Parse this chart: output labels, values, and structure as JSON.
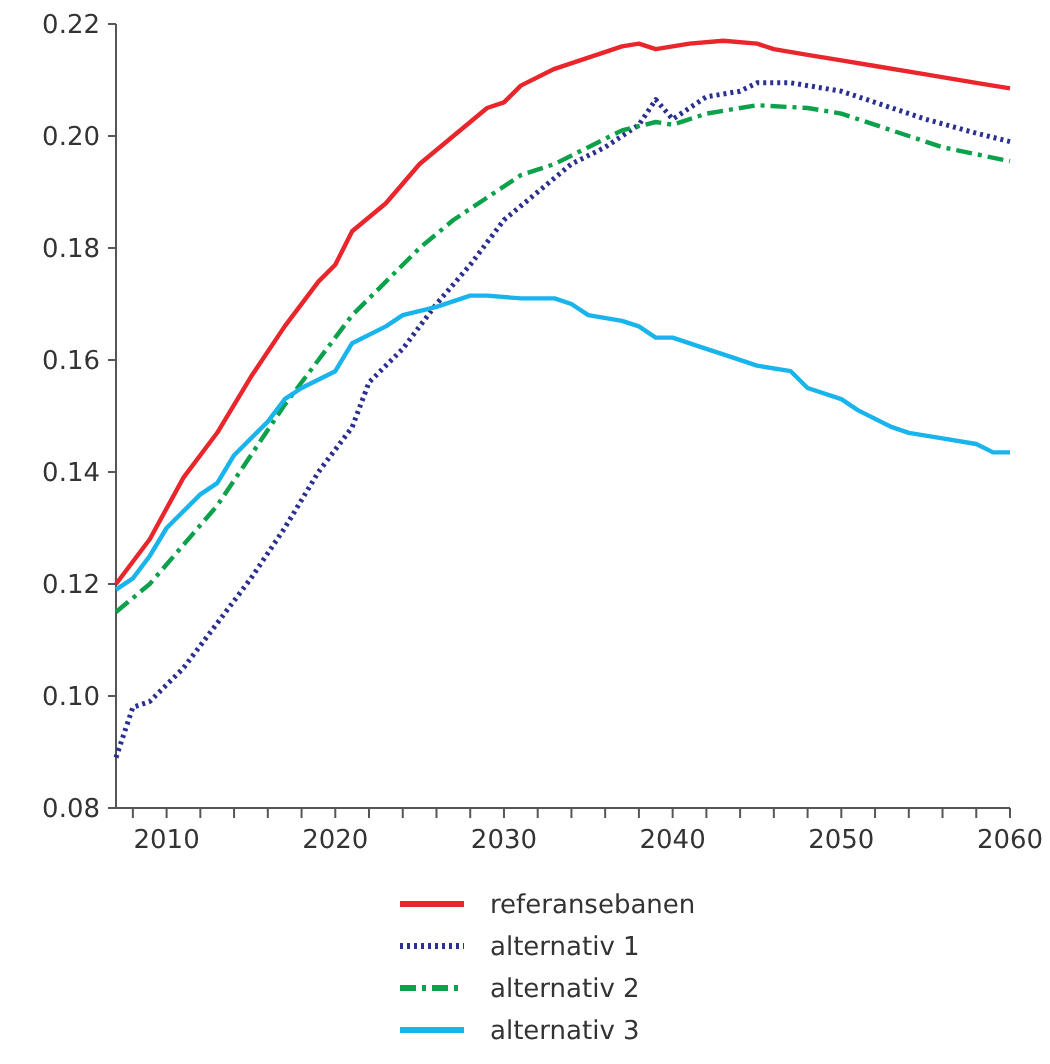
{
  "chart_data": {
    "type": "line",
    "xlim": [
      2007,
      2060
    ],
    "ylim": [
      0.08,
      0.22
    ],
    "xticks": [
      {
        "value": 2008,
        "label": null
      },
      2010,
      {
        "value": 2012,
        "label": null
      },
      {
        "value": 2014,
        "label": null
      },
      {
        "value": 2016,
        "label": null
      },
      {
        "value": 2018,
        "label": null
      },
      2020,
      {
        "value": 2022,
        "label": null
      },
      {
        "value": 2024,
        "label": null
      },
      {
        "value": 2026,
        "label": null
      },
      {
        "value": 2028,
        "label": null
      },
      2030,
      {
        "value": 2032,
        "label": null
      },
      {
        "value": 2034,
        "label": null
      },
      {
        "value": 2036,
        "label": null
      },
      {
        "value": 2038,
        "label": null
      },
      2040,
      {
        "value": 2042,
        "label": null
      },
      {
        "value": 2044,
        "label": null
      },
      {
        "value": 2046,
        "label": null
      },
      {
        "value": 2048,
        "label": null
      },
      2050,
      {
        "value": 2052,
        "label": null
      },
      {
        "value": 2054,
        "label": null
      },
      {
        "value": 2056,
        "label": null
      },
      {
        "value": 2058,
        "label": null
      },
      2060
    ],
    "yticks": [
      {
        "value": 0.08,
        "label": "0.08"
      },
      {
        "value": 0.1,
        "label": "0.10"
      },
      {
        "value": 0.12,
        "label": "0.12"
      },
      {
        "value": 0.14,
        "label": "0.14"
      },
      {
        "value": 0.16,
        "label": "0.16"
      },
      {
        "value": 0.18,
        "label": "0.18"
      },
      {
        "value": 0.2,
        "label": "0.20"
      },
      {
        "value": 0.22,
        "label": "0.22"
      }
    ],
    "legend": "bottom",
    "grid": false,
    "series": [
      {
        "name": "referansebanen",
        "color": "#e8262c",
        "line_style": "solid",
        "x": [
          2007,
          2009,
          2011,
          2013,
          2015,
          2017,
          2019,
          2020,
          2021,
          2023,
          2025,
          2027,
          2029,
          2030,
          2031,
          2033,
          2035,
          2037,
          2038,
          2039,
          2041,
          2043,
          2045,
          2046,
          2048,
          2050,
          2052,
          2055,
          2058,
          2060
        ],
        "values": [
          0.12,
          0.128,
          0.139,
          0.147,
          0.157,
          0.166,
          0.174,
          0.177,
          0.183,
          0.188,
          0.195,
          0.2,
          0.205,
          0.206,
          0.209,
          0.212,
          0.214,
          0.216,
          0.2165,
          0.2155,
          0.2165,
          0.217,
          0.2165,
          0.2155,
          0.2145,
          0.2135,
          0.2125,
          0.211,
          0.2095,
          0.2085
        ]
      },
      {
        "name": "alternativ 1",
        "color": "#2b2f8f",
        "line_style": "dotted",
        "x": [
          2007,
          2008,
          2009,
          2011,
          2013,
          2015,
          2017,
          2019,
          2021,
          2022,
          2024,
          2026,
          2028,
          2030,
          2032,
          2034,
          2036,
          2038,
          2039,
          2040,
          2042,
          2044,
          2045,
          2047,
          2050,
          2052,
          2055,
          2058,
          2060
        ],
        "values": [
          0.089,
          0.098,
          0.099,
          0.105,
          0.113,
          0.121,
          0.13,
          0.14,
          0.148,
          0.156,
          0.162,
          0.17,
          0.177,
          0.185,
          0.19,
          0.195,
          0.198,
          0.202,
          0.2065,
          0.203,
          0.207,
          0.208,
          0.2095,
          0.2095,
          0.208,
          0.206,
          0.203,
          0.2005,
          0.199
        ]
      },
      {
        "name": "alternativ 2",
        "color": "#0ca14a",
        "line_style": "dashdot",
        "x": [
          2007,
          2009,
          2011,
          2013,
          2015,
          2017,
          2019,
          2021,
          2023,
          2025,
          2027,
          2029,
          2031,
          2033,
          2035,
          2037,
          2039,
          2040,
          2042,
          2045,
          2048,
          2050,
          2053,
          2056,
          2060
        ],
        "values": [
          0.115,
          0.12,
          0.127,
          0.134,
          0.143,
          0.152,
          0.16,
          0.168,
          0.174,
          0.18,
          0.185,
          0.189,
          0.193,
          0.195,
          0.198,
          0.201,
          0.2025,
          0.202,
          0.204,
          0.2055,
          0.205,
          0.204,
          0.201,
          0.198,
          0.1955
        ]
      },
      {
        "name": "alternativ 3",
        "color": "#19b4ec",
        "line_style": "solid",
        "x": [
          2007,
          2008,
          2009,
          2010,
          2012,
          2013,
          2014,
          2016,
          2017,
          2018,
          2020,
          2021,
          2023,
          2024,
          2026,
          2028,
          2029,
          2031,
          2033,
          2034,
          2035,
          2037,
          2038,
          2039,
          2040,
          2042,
          2043,
          2045,
          2047,
          2048,
          2050,
          2051,
          2053,
          2054,
          2056,
          2058,
          2059,
          2060
        ],
        "values": [
          0.119,
          0.121,
          0.125,
          0.13,
          0.136,
          0.138,
          0.143,
          0.149,
          0.153,
          0.155,
          0.158,
          0.163,
          0.166,
          0.168,
          0.1695,
          0.1715,
          0.1715,
          0.171,
          0.171,
          0.17,
          0.168,
          0.167,
          0.166,
          0.164,
          0.164,
          0.162,
          0.161,
          0.159,
          0.158,
          0.155,
          0.153,
          0.151,
          0.148,
          0.147,
          0.146,
          0.145,
          0.1435,
          0.1435
        ]
      }
    ]
  }
}
